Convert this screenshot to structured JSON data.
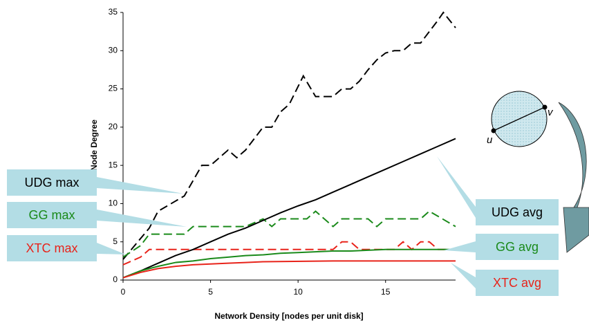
{
  "chart_data": {
    "type": "line",
    "xlabel": "Network Density [nodes per unit disk]",
    "ylabel": "Node Degree",
    "xlim": [
      0,
      19
    ],
    "ylim": [
      0,
      35
    ],
    "xticks": [
      0,
      5,
      10,
      15
    ],
    "yticks": [
      0,
      5,
      10,
      15,
      20,
      25,
      30,
      35
    ],
    "grid": false,
    "series": [
      {
        "name": "UDG max",
        "color": "#000000",
        "style": "dashed",
        "x": [
          0,
          1.5,
          2,
          3.5,
          4.5,
          5,
          6,
          6.5,
          7,
          8,
          8.5,
          9,
          9.5,
          10.3,
          11,
          12,
          12.5,
          13,
          13.5,
          14,
          14.5,
          15,
          15.5,
          16,
          16.5,
          17,
          17.5,
          18,
          18.3,
          19
        ],
        "values": [
          2.7,
          6.8,
          9,
          11,
          15,
          15,
          17,
          16,
          17,
          20,
          20,
          22,
          23,
          26.7,
          24,
          24,
          25,
          25,
          26,
          27.5,
          28.8,
          29.7,
          30,
          30,
          31,
          31,
          32.5,
          34,
          35,
          33
        ]
      },
      {
        "name": "GG max",
        "color": "#1a8a1a",
        "style": "dashed",
        "x": [
          0,
          1,
          1.5,
          3.5,
          4,
          7,
          8,
          8.5,
          9,
          10.5,
          11,
          12,
          12.5,
          14,
          14.5,
          15,
          17,
          17.5,
          19
        ],
        "values": [
          3,
          4.5,
          6,
          6,
          7,
          7,
          8,
          7,
          8,
          8,
          9,
          7,
          8,
          8,
          7,
          8,
          8,
          9,
          7
        ]
      },
      {
        "name": "XTC max",
        "color": "#e8231a",
        "style": "dashed",
        "x": [
          0,
          1,
          1.5,
          12,
          12.5,
          13,
          13.5,
          15.5,
          16,
          16.5,
          17,
          17.5,
          18,
          19
        ],
        "values": [
          2,
          3,
          4,
          4,
          5,
          5,
          4,
          4,
          5,
          4,
          5,
          5,
          4,
          4
        ]
      },
      {
        "name": "UDG avg",
        "color": "#000000",
        "style": "solid",
        "x": [
          0,
          1,
          2,
          3,
          4,
          5,
          6,
          7,
          8,
          9,
          10,
          11,
          12,
          13,
          14,
          15,
          16,
          17,
          18,
          19
        ],
        "values": [
          0.3,
          1.2,
          2.2,
          3.2,
          4,
          5,
          6,
          6.8,
          7.8,
          8.8,
          9.7,
          10.5,
          11.5,
          12.5,
          13.5,
          14.5,
          15.5,
          16.5,
          17.5,
          18.5
        ]
      },
      {
        "name": "GG avg",
        "color": "#1a8a1a",
        "style": "solid",
        "x": [
          0,
          1,
          2,
          3,
          4,
          5,
          6,
          7,
          8,
          9,
          10,
          11,
          12,
          13,
          14,
          15,
          19
        ],
        "values": [
          0.3,
          1.2,
          1.8,
          2.3,
          2.5,
          2.8,
          3,
          3.2,
          3.3,
          3.5,
          3.6,
          3.7,
          3.8,
          3.8,
          3.9,
          4,
          4
        ]
      },
      {
        "name": "XTC avg",
        "color": "#e8231a",
        "style": "solid",
        "x": [
          0,
          1,
          2,
          3,
          4,
          5,
          6,
          7,
          8,
          12,
          19
        ],
        "values": [
          0.3,
          1,
          1.5,
          1.8,
          2,
          2.1,
          2.2,
          2.3,
          2.4,
          2.5,
          2.5
        ]
      }
    ]
  },
  "diagram": {
    "labels": [
      "u",
      "v"
    ]
  }
}
